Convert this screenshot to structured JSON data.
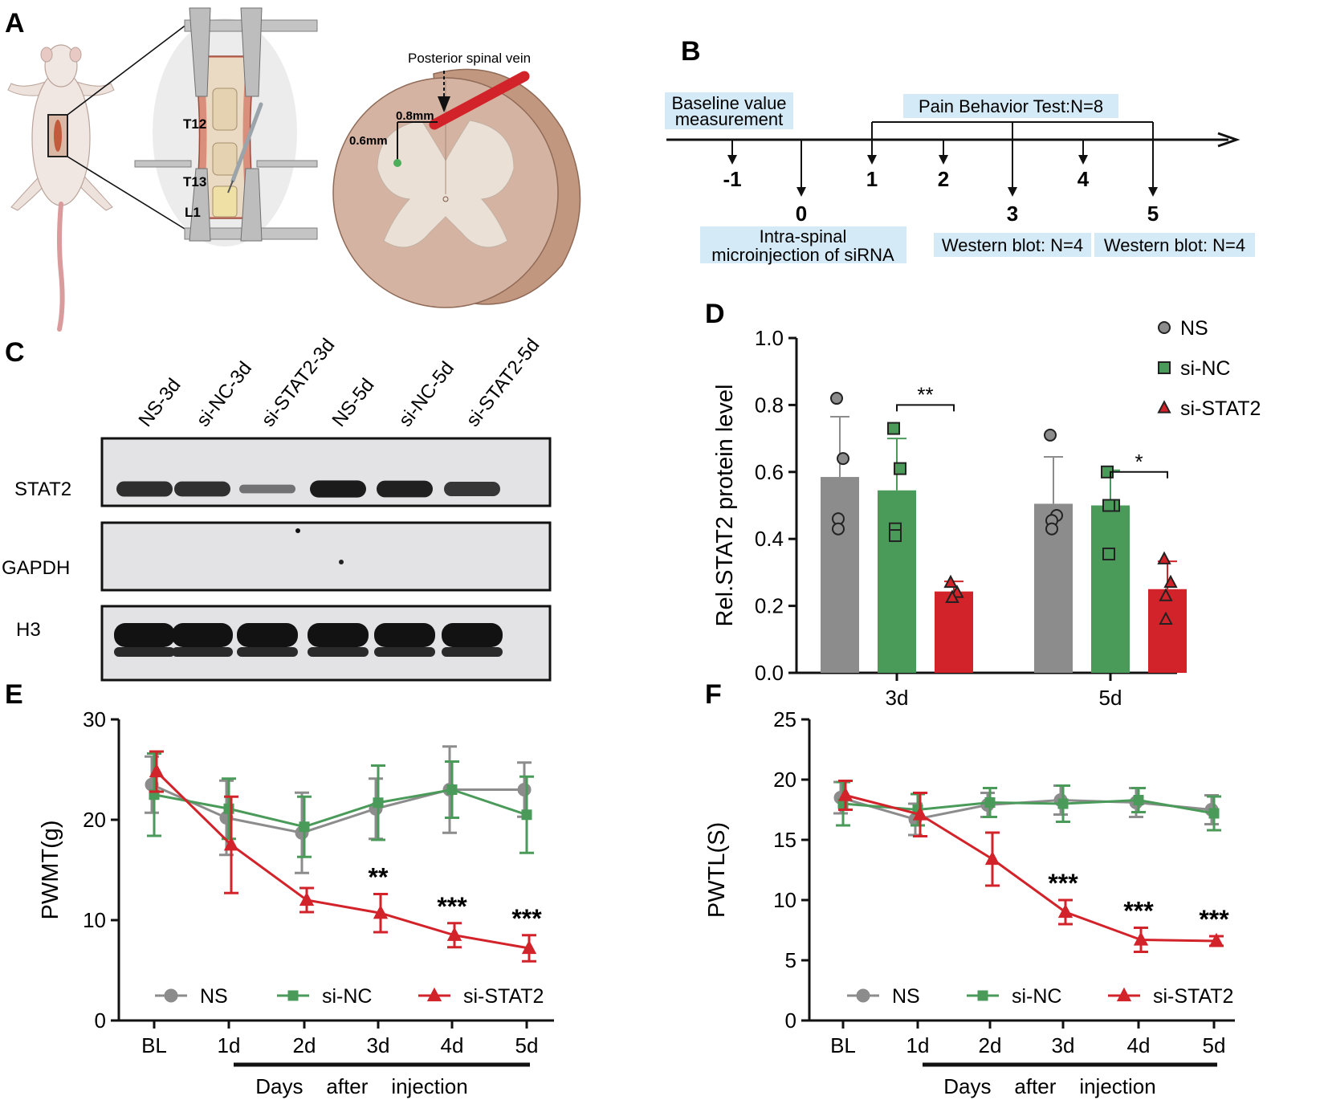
{
  "panel_labels": {
    "A": "A",
    "B": "B",
    "C": "C",
    "D": "D",
    "E": "E",
    "F": "F"
  },
  "panel_a": {
    "vertebrae": [
      "T12",
      "T13",
      "L1"
    ],
    "vein_label": "Posterior spinal vein",
    "depth_label": "0.8mm",
    "lateral_label": "0.6mm",
    "colors": {
      "vein": "#d3232a",
      "injection_point": "#4cae5a",
      "cord": "#c7a08b"
    }
  },
  "panel_b": {
    "days": [
      "-1",
      "0",
      "1",
      "2",
      "3",
      "4",
      "5"
    ],
    "baseline_box": [
      "Baseline value",
      "measurement"
    ],
    "pain_box": "Pain Behavior Test:N=8",
    "injection_box": [
      "Intra-spinal",
      "microinjection of siRNA"
    ],
    "wb3_box": "Western blot: N=4",
    "wb5_box": "Western blot: N=4",
    "box_color": "#d5eaf7"
  },
  "panel_c": {
    "lanes": [
      "NS-3d",
      "si-NC-3d",
      "si-STAT2-3d",
      "NS-5d",
      "si-NC-5d",
      "si-STAT2-5d"
    ],
    "rows": [
      "STAT2",
      "GAPDH",
      "H3"
    ],
    "stat2_intensity": [
      0.82,
      0.8,
      0.3,
      0.95,
      0.92,
      0.75
    ]
  },
  "chart_data": [
    {
      "id": "D",
      "type": "bar",
      "categories": [
        "3d",
        "5d"
      ],
      "ylabel": "Rel.STAT2 protein level",
      "ylim": [
        0,
        1.0
      ],
      "yticks": [
        "0.0",
        "0.2",
        "0.4",
        "0.6",
        "0.8",
        "1.0"
      ],
      "series": [
        {
          "name": "NS",
          "color": "#8c8c8c",
          "marker": "circle",
          "values": [
            0.585,
            0.505
          ],
          "errors": [
            0.18,
            0.14
          ],
          "points": [
            [
              0.82,
              0.64,
              0.46,
              0.43
            ],
            [
              0.71,
              0.47,
              0.455,
              0.43
            ]
          ]
        },
        {
          "name": "si-NC",
          "color": "#4a9a5a",
          "marker": "square",
          "values": [
            0.545,
            0.5
          ],
          "errors": [
            0.155,
            0.105
          ],
          "points": [
            [
              0.73,
              0.61,
              0.43,
              0.41
            ],
            [
              0.6,
              0.5,
              0.5,
              0.355
            ]
          ]
        },
        {
          "name": "si-STAT2",
          "color": "#d3232a",
          "marker": "triangle",
          "values": [
            0.243,
            0.25
          ],
          "errors": [
            0.03,
            0.083
          ],
          "points": [
            [
              0.27,
              0.24,
              0.225,
              0.225
            ],
            [
              0.34,
              0.27,
              0.23,
              0.16
            ]
          ]
        }
      ],
      "significance": [
        {
          "group": "3d",
          "label": "**"
        },
        {
          "group": "5d",
          "label": "*"
        }
      ]
    },
    {
      "id": "E",
      "type": "line",
      "x": [
        "BL",
        "1d",
        "2d",
        "3d",
        "4d",
        "5d"
      ],
      "xlabel": "Days    after    injection",
      "ylabel": "PWMT(g)",
      "ylim": [
        0,
        30
      ],
      "yticks": [
        "0",
        "10",
        "20",
        "30"
      ],
      "series": [
        {
          "name": "NS",
          "color": "#8c8c8c",
          "marker": "circle",
          "values": [
            23.5,
            20.2,
            18.7,
            21.1,
            23.0,
            23.0
          ],
          "errors": [
            2.8,
            3.7,
            4.0,
            3.0,
            4.3,
            2.7
          ]
        },
        {
          "name": "si-NC",
          "color": "#4a9a5a",
          "marker": "square",
          "values": [
            22.5,
            21.1,
            19.3,
            21.7,
            23.0,
            20.5
          ],
          "errors": [
            4.1,
            3.0,
            3.0,
            3.7,
            2.8,
            3.8
          ]
        },
        {
          "name": "si-STAT2",
          "color": "#d3232a",
          "marker": "triangle",
          "values": [
            24.8,
            17.5,
            12.0,
            10.7,
            8.5,
            7.2
          ],
          "errors": [
            2.0,
            4.8,
            1.2,
            1.9,
            1.2,
            1.3
          ]
        }
      ],
      "significance": [
        {
          "x": "3d",
          "label": "**"
        },
        {
          "x": "4d",
          "label": "***"
        },
        {
          "x": "5d",
          "label": "***"
        }
      ]
    },
    {
      "id": "F",
      "type": "line",
      "x": [
        "BL",
        "1d",
        "2d",
        "3d",
        "4d",
        "5d"
      ],
      "xlabel": "Days    after    injection",
      "ylabel": "PWTL(S)",
      "ylim": [
        0,
        25
      ],
      "yticks": [
        "0",
        "5",
        "10",
        "15",
        "20",
        "25"
      ],
      "series": [
        {
          "name": "NS",
          "color": "#8c8c8c",
          "marker": "circle",
          "values": [
            18.5,
            16.7,
            17.9,
            18.3,
            18.1,
            17.5
          ],
          "errors": [
            1.3,
            1.3,
            1.0,
            1.2,
            1.2,
            1.2
          ]
        },
        {
          "name": "si-NC",
          "color": "#4a9a5a",
          "marker": "square",
          "values": [
            18.0,
            17.5,
            18.1,
            18.0,
            18.3,
            17.2
          ],
          "errors": [
            1.8,
            1.3,
            1.2,
            1.5,
            1.0,
            1.4
          ]
        },
        {
          "name": "si-STAT2",
          "color": "#d3232a",
          "marker": "triangle",
          "values": [
            18.7,
            17.1,
            13.4,
            9.0,
            6.7,
            6.6
          ],
          "errors": [
            1.2,
            1.8,
            2.2,
            1.0,
            1.0,
            0.4
          ]
        }
      ],
      "significance": [
        {
          "x": "3d",
          "label": "***"
        },
        {
          "x": "4d",
          "label": "***"
        },
        {
          "x": "5d",
          "label": "***"
        }
      ]
    }
  ]
}
